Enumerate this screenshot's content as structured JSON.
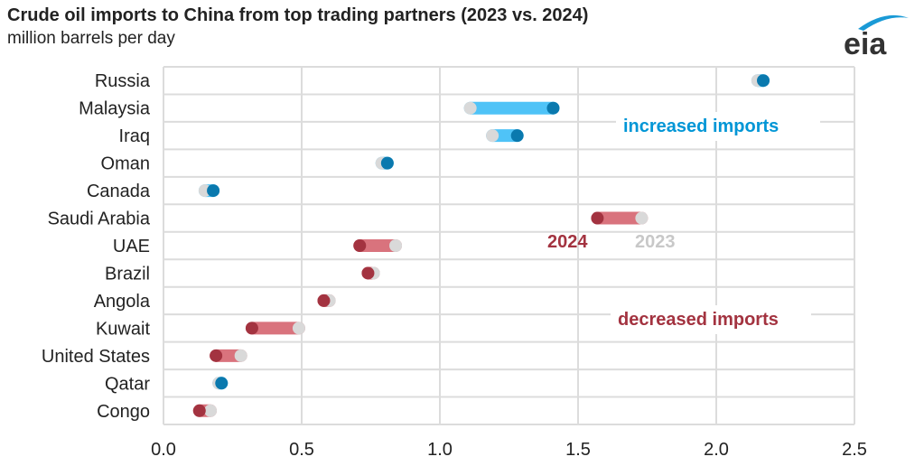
{
  "chart_data": {
    "type": "dumbbell",
    "title": "Crude oil imports to China from top trading partners (2023 vs. 2024)",
    "subtitle": "million barrels per day",
    "xlabel": "",
    "ylabel": "",
    "xlim": [
      0,
      2.5
    ],
    "xticks": [
      "0.0",
      "0.5",
      "1.0",
      "1.5",
      "2.0",
      "2.5"
    ],
    "xtick_values": [
      0,
      0.5,
      1.0,
      1.5,
      2.0,
      2.5
    ],
    "grid": true,
    "categories": [
      "Russia",
      "Malaysia",
      "Iraq",
      "Oman",
      "Canada",
      "Saudi Arabia",
      "UAE",
      "Brazil",
      "Angola",
      "Kuwait",
      "United States",
      "Qatar",
      "Congo"
    ],
    "series": [
      {
        "name": "2023",
        "color": "#d9d9d9",
        "values": [
          2.15,
          1.11,
          1.19,
          0.79,
          0.15,
          1.73,
          0.84,
          0.76,
          0.6,
          0.49,
          0.28,
          0.2,
          0.17
        ]
      },
      {
        "name": "2024",
        "color_increase": "#0a79ae",
        "color_decrease": "#a33340",
        "values": [
          2.17,
          1.41,
          1.28,
          0.81,
          0.18,
          1.57,
          0.71,
          0.74,
          0.58,
          0.32,
          0.19,
          0.21,
          0.13
        ]
      }
    ],
    "bar_colors": {
      "increase": "#4fc3f7",
      "decrease": "#d9737d"
    },
    "annotations": {
      "increased": "increased imports",
      "decreased": "decreased imports",
      "legend_2024": "2024",
      "legend_2023": "2023"
    },
    "colors": {
      "increase_text": "#0096d6",
      "decrease_text": "#a33340",
      "legend_2023": "#c8c8c8"
    }
  },
  "logo": {
    "text": "eia"
  }
}
